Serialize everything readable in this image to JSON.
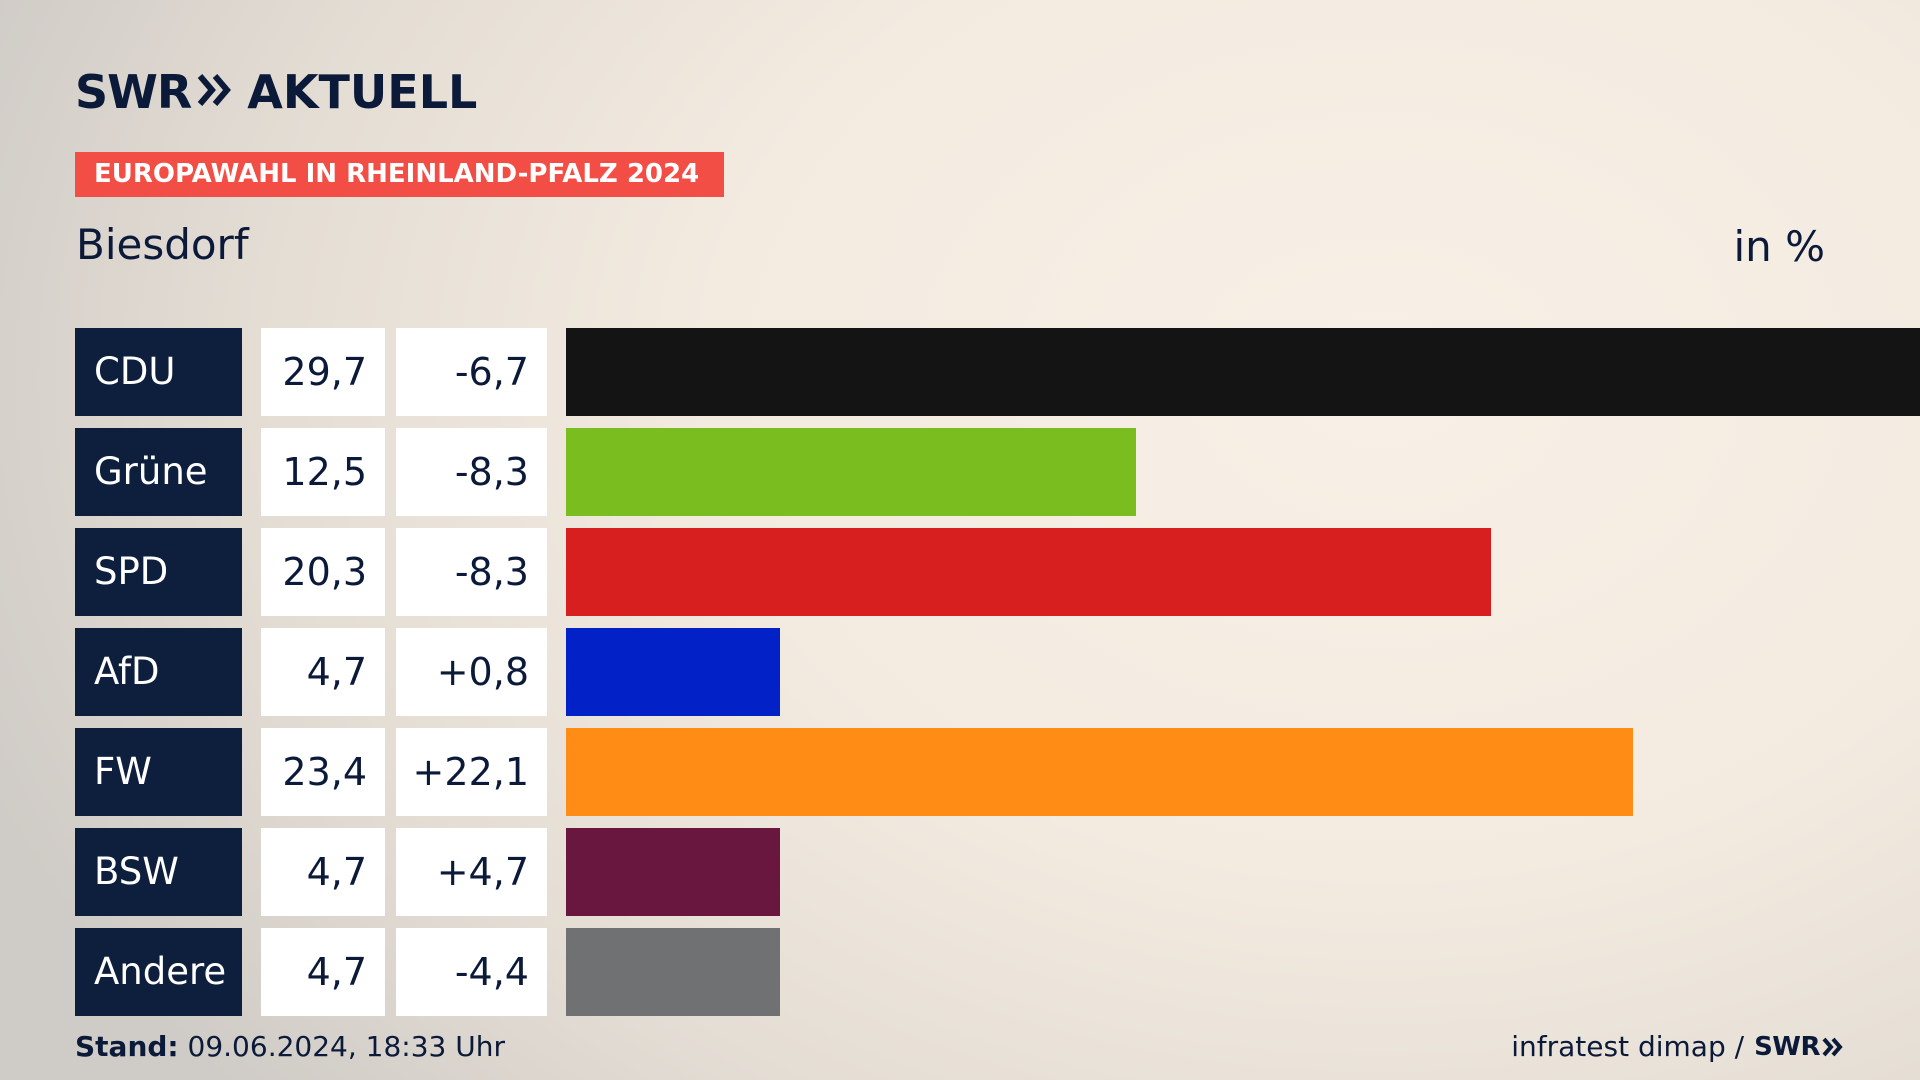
{
  "brand": {
    "swr": "SWR",
    "aktuell": "AKTUELL"
  },
  "banner": {
    "label": "EUROPAWAHL IN RHEINLAND-PFALZ 2024"
  },
  "header": {
    "place": "Biesdorf",
    "unit": "in %"
  },
  "chart_data": {
    "type": "bar",
    "orientation": "horizontal",
    "title": "Biesdorf",
    "unit": "in %",
    "categories": [
      "CDU",
      "Grüne",
      "SPD",
      "AfD",
      "FW",
      "BSW",
      "Andere"
    ],
    "values": [
      29.7,
      12.5,
      20.3,
      4.7,
      23.4,
      4.7,
      4.7
    ],
    "value_labels": [
      "29,7",
      "12,5",
      "20,3",
      "4,7",
      "23,4",
      "4,7",
      "4,7"
    ],
    "diff_labels": [
      "-6,7",
      "-8,3",
      "-8,3",
      "+0,8",
      "+22,1",
      "+4,7",
      "-4,4"
    ],
    "colors": [
      "#141414",
      "#7abd1e",
      "#d81f1f",
      "#0222c8",
      "#ff8c14",
      "#69173e",
      "#707172"
    ],
    "xlim": [
      0,
      29.7
    ]
  },
  "footer": {
    "stand_label": "Stand:",
    "stand_value": "09.06.2024, 18:33 Uhr",
    "source": "infratest dimap /",
    "source_brand": "SWR"
  }
}
